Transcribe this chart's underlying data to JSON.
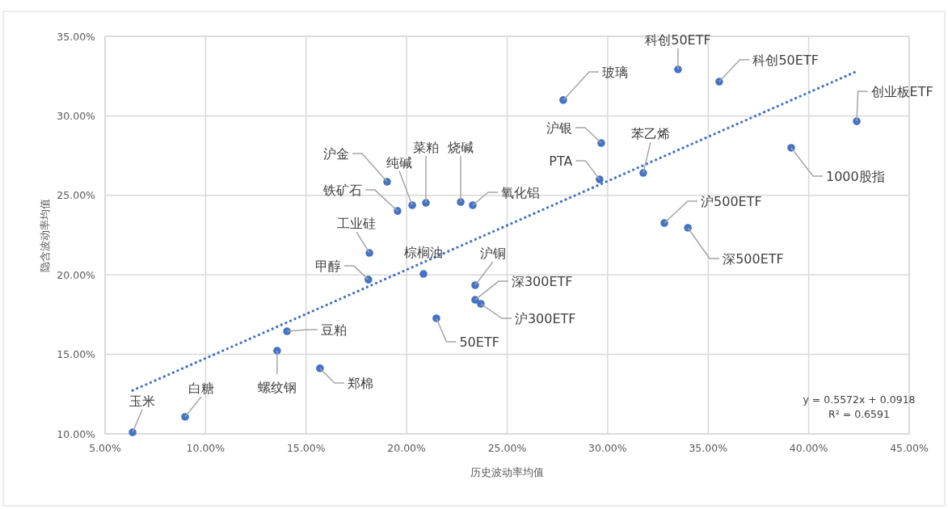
{
  "chart_data": {
    "type": "scatter",
    "xlabel": "历史波动率均值",
    "ylabel": "隐含波动率均值",
    "xlim": [
      5,
      45
    ],
    "ylim": [
      10,
      35
    ],
    "xticks": [
      {
        "value": 5,
        "label": "5.00%"
      },
      {
        "value": 10,
        "label": "10.00%"
      },
      {
        "value": 15,
        "label": "15.00%"
      },
      {
        "value": 20,
        "label": "20.00%"
      },
      {
        "value": 25,
        "label": "25.00%"
      },
      {
        "value": 30,
        "label": "30.00%"
      },
      {
        "value": 35,
        "label": "35.00%"
      },
      {
        "value": 40,
        "label": "40.00%"
      },
      {
        "value": 45,
        "label": "45.00%"
      }
    ],
    "yticks": [
      {
        "value": 10,
        "label": "10.00%"
      },
      {
        "value": 15,
        "label": "15.00%"
      },
      {
        "value": 20,
        "label": "20.00%"
      },
      {
        "value": 25,
        "label": "25.00%"
      },
      {
        "value": 30,
        "label": "30.00%"
      },
      {
        "value": 35,
        "label": "35.00%"
      }
    ],
    "grid": true,
    "series": [
      {
        "color": "#4472c4",
        "marker": "circle",
        "x": [
          6.37,
          8.98,
          13.56,
          15.69,
          14.05,
          18.1,
          18.15,
          19.55,
          19.03,
          20.28,
          20.96,
          22.69,
          23.29,
          20.84,
          23.41,
          23.41,
          23.69,
          21.48,
          27.79,
          29.68,
          29.6,
          31.77,
          33.5,
          35.55,
          42.39,
          39.13,
          32.82,
          33.99
        ],
        "values": [
          10.1,
          11.07,
          15.23,
          14.12,
          16.45,
          19.7,
          21.38,
          24.02,
          25.85,
          24.38,
          24.53,
          24.58,
          24.38,
          20.06,
          19.35,
          18.43,
          18.18,
          17.27,
          30.99,
          28.29,
          26.0,
          26.41,
          32.92,
          32.15,
          29.66,
          27.99,
          23.26,
          22.96
        ]
      },
      {
        "type": "line",
        "color": "#4472c4",
        "line_style": "dotted",
        "x": [
          6.37,
          42.39
        ],
        "values": [
          12.73,
          32.8
        ]
      }
    ],
    "annotations": [
      {
        "text": "玉米",
        "x": 6.37,
        "y": 10.1
      },
      {
        "text": "白糖",
        "x": 8.98,
        "y": 11.07
      },
      {
        "text": "螺纹钢",
        "x": 13.56,
        "y": 15.23
      },
      {
        "text": "郑棉",
        "x": 15.69,
        "y": 14.12
      },
      {
        "text": "豆粕",
        "x": 14.05,
        "y": 16.45
      },
      {
        "text": "甲醇",
        "x": 18.1,
        "y": 19.7
      },
      {
        "text": "工业硅",
        "x": 18.15,
        "y": 21.38
      },
      {
        "text": "铁矿石",
        "x": 19.55,
        "y": 24.02
      },
      {
        "text": "沪金",
        "x": 19.03,
        "y": 25.85
      },
      {
        "text": "纯碱",
        "x": 20.28,
        "y": 24.38
      },
      {
        "text": "菜粕",
        "x": 20.96,
        "y": 24.53
      },
      {
        "text": "烧碱",
        "x": 22.69,
        "y": 24.58
      },
      {
        "text": "氧化铝",
        "x": 23.29,
        "y": 24.38
      },
      {
        "text": "棕榈油",
        "x": 20.84,
        "y": 20.06
      },
      {
        "text": "沪铜",
        "x": 23.41,
        "y": 19.35
      },
      {
        "text": "深300ETF",
        "x": 23.41,
        "y": 18.43
      },
      {
        "text": "沪300ETF",
        "x": 23.69,
        "y": 18.18
      },
      {
        "text": "50ETF",
        "x": 21.48,
        "y": 17.27
      },
      {
        "text": "玻璃",
        "x": 27.79,
        "y": 30.99
      },
      {
        "text": "沪银",
        "x": 29.68,
        "y": 28.29
      },
      {
        "text": "PTA",
        "x": 29.6,
        "y": 26.0
      },
      {
        "text": "苯乙烯",
        "x": 31.77,
        "y": 26.41
      },
      {
        "text": "科创50ETF",
        "x": 33.5,
        "y": 32.92
      },
      {
        "text": "科创50ETF",
        "x": 35.55,
        "y": 32.15
      },
      {
        "text": "创业板ETF",
        "x": 42.39,
        "y": 29.66
      },
      {
        "text": "1000股指",
        "x": 39.13,
        "y": 27.99
      },
      {
        "text": "沪500ETF",
        "x": 32.82,
        "y": 23.26
      },
      {
        "text": "深500ETF",
        "x": 33.99,
        "y": 22.96
      },
      "y = 0.5572x + 0.0918",
      "R² = 0.6591"
    ]
  }
}
